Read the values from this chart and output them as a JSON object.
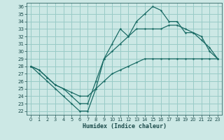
{
  "xlabel": "Humidex (Indice chaleur)",
  "bg_color": "#cce8e5",
  "grid_color": "#99cbc7",
  "line_color": "#1a6b65",
  "xlim": [
    -0.5,
    23.5
  ],
  "ylim": [
    21.5,
    36.5
  ],
  "xticks": [
    0,
    1,
    2,
    3,
    4,
    5,
    6,
    7,
    8,
    9,
    10,
    11,
    12,
    13,
    14,
    15,
    16,
    17,
    18,
    19,
    20,
    21,
    22,
    23
  ],
  "yticks": [
    22,
    23,
    24,
    25,
    26,
    27,
    28,
    29,
    30,
    31,
    32,
    33,
    34,
    35,
    36
  ],
  "line1_x": [
    0,
    1,
    2,
    3,
    4,
    5,
    6,
    7,
    8,
    9,
    10,
    11,
    12,
    13,
    14,
    15,
    16,
    17,
    18,
    19,
    20,
    21,
    22,
    23
  ],
  "line1_y": [
    28,
    27,
    26,
    25,
    24,
    23,
    22,
    22,
    25,
    29,
    31,
    33,
    32,
    34,
    35,
    36,
    35.5,
    34,
    34,
    32.5,
    32.5,
    32,
    30,
    29
  ],
  "line2_x": [
    0,
    1,
    2,
    3,
    4,
    5,
    6,
    7,
    8,
    9,
    10,
    11,
    12,
    13,
    14,
    15,
    16,
    17,
    18,
    19,
    20,
    21,
    22,
    23
  ],
  "line2_y": [
    28,
    27.5,
    26.5,
    25.5,
    25,
    24,
    23,
    23,
    26,
    29,
    30,
    31,
    32,
    33,
    33,
    33,
    33,
    33.5,
    33.5,
    33,
    32.5,
    31.5,
    30.5,
    29
  ],
  "line3_x": [
    0,
    1,
    2,
    3,
    4,
    5,
    6,
    7,
    8,
    9,
    10,
    11,
    12,
    13,
    14,
    15,
    16,
    17,
    18,
    19,
    20,
    21,
    22,
    23
  ],
  "line3_y": [
    28,
    27.5,
    26.5,
    25.5,
    25,
    24.5,
    24,
    24,
    25,
    26,
    27,
    27.5,
    28,
    28.5,
    29,
    29,
    29,
    29,
    29,
    29,
    29,
    29,
    29,
    29
  ]
}
